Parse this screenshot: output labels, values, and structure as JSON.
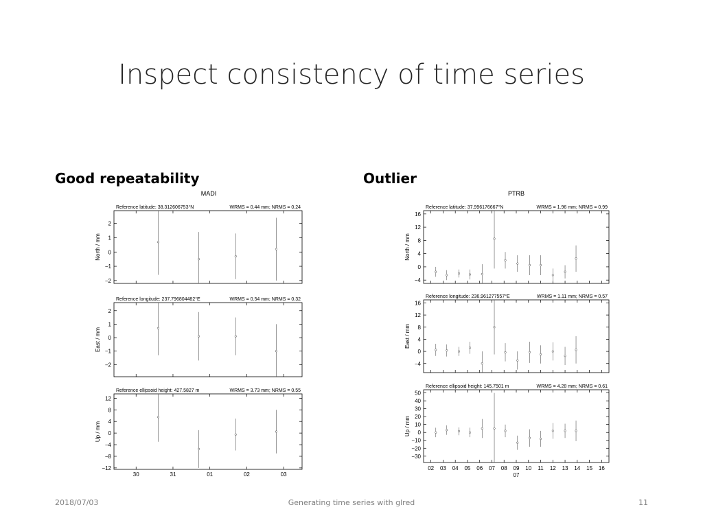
{
  "slide": {
    "title": "Inspect consistency of time series",
    "left_heading": "Good repeatability",
    "right_heading": "Outlier",
    "footer_date": "2018/07/03",
    "footer_center": "Generating time series with glred",
    "page_number": "11"
  },
  "chart_data": [
    {
      "type": "scatter",
      "title": "MADI",
      "x_tick_labels": [
        "30",
        "31",
        "01",
        "02",
        "03"
      ],
      "x_sublabel": "",
      "xlim": [
        29.4,
        34.5
      ],
      "x_ticks": [
        30,
        31,
        32,
        33,
        34
      ],
      "panels": [
        {
          "ylabel": "North / mm",
          "reference": "Reference latitude: 38.312606753°N",
          "stats": "WRMS = 0.44 mm; NRMS = 0.24",
          "ylim": [
            -2.2,
            2.9
          ],
          "y_ticks": [
            -2,
            -1,
            0,
            1,
            2
          ],
          "y_tick_labels": [
            "−2",
            "−1",
            "0",
            "1",
            "2"
          ],
          "points": [
            {
              "x": 30.6,
              "y": 0.7,
              "err": 2.3
            },
            {
              "x": 31.7,
              "y": -0.5,
              "err": 1.9
            },
            {
              "x": 32.7,
              "y": -0.3,
              "err": 1.6
            },
            {
              "x": 33.8,
              "y": 0.2,
              "err": 2.2
            }
          ]
        },
        {
          "ylabel": "East / mm",
          "reference": "Reference longitude: 237.796804482°E",
          "stats": "WRMS = 0.54 mm; NRMS = 0.32",
          "ylim": [
            -2.9,
            2.6
          ],
          "y_ticks": [
            -2,
            -1,
            0,
            1,
            2
          ],
          "y_tick_labels": [
            "−2",
            "−1",
            "0",
            "1",
            "2"
          ],
          "points": [
            {
              "x": 30.6,
              "y": 0.7,
              "err": 2.0
            },
            {
              "x": 31.7,
              "y": 0.1,
              "err": 1.8
            },
            {
              "x": 32.7,
              "y": 0.1,
              "err": 1.4
            },
            {
              "x": 33.8,
              "y": -1.0,
              "err": 2.0
            }
          ]
        },
        {
          "ylabel": "Up / mm",
          "reference": "Reference ellipsoid height: 427.5827 m",
          "stats": "WRMS = 3.73 mm; NRMS = 0.55",
          "ylim": [
            -12.5,
            13.5
          ],
          "y_ticks": [
            -12,
            -8,
            -4,
            0,
            4,
            8,
            12
          ],
          "y_tick_labels": [
            "−12",
            "−8",
            "−4",
            "0",
            "4",
            "8",
            "12"
          ],
          "points": [
            {
              "x": 30.6,
              "y": 5.5,
              "err": 8.5
            },
            {
              "x": 31.7,
              "y": -5.5,
              "err": 6.5
            },
            {
              "x": 32.7,
              "y": -0.5,
              "err": 5.5
            },
            {
              "x": 33.8,
              "y": 0.5,
              "err": 7.5
            }
          ]
        }
      ]
    },
    {
      "type": "scatter",
      "title": "PTRB",
      "x_tick_labels": [
        "02",
        "03",
        "04",
        "05",
        "06",
        "07",
        "08",
        "09",
        "10",
        "11",
        "12",
        "13",
        "14",
        "15",
        "16"
      ],
      "x_sublabel": "07",
      "xlim": [
        1.4,
        16.6
      ],
      "x_ticks": [
        2,
        3,
        4,
        5,
        6,
        7,
        8,
        9,
        10,
        11,
        12,
        13,
        14,
        15,
        16
      ],
      "panels": [
        {
          "ylabel": "North / mm",
          "reference": "Reference latitude: 37.996176667°N",
          "stats": "WRMS = 1.96 mm; NRMS = 0.99",
          "ylim": [
            -5,
            17
          ],
          "y_ticks": [
            -4,
            0,
            4,
            8,
            12,
            16
          ],
          "y_tick_labels": [
            "−4",
            "0",
            "4",
            "8",
            "12",
            "16"
          ],
          "points": [
            {
              "x": 2.4,
              "y": -1.5,
              "err": 1.5
            },
            {
              "x": 3.3,
              "y": -2.5,
              "err": 1.5
            },
            {
              "x": 4.3,
              "y": -2.0,
              "err": 1.2
            },
            {
              "x": 5.2,
              "y": -2.3,
              "err": 1.5
            },
            {
              "x": 6.2,
              "y": -2.2,
              "err": 3.0
            },
            {
              "x": 7.2,
              "y": 8.5,
              "err": 9.0
            },
            {
              "x": 8.1,
              "y": 2.0,
              "err": 2.5
            },
            {
              "x": 9.1,
              "y": 1.0,
              "err": 2.5
            },
            {
              "x": 10.1,
              "y": 0.5,
              "err": 3.0
            },
            {
              "x": 11.0,
              "y": 0.5,
              "err": 3.0
            },
            {
              "x": 12.0,
              "y": -2.5,
              "err": 2.0
            },
            {
              "x": 13.0,
              "y": -1.5,
              "err": 2.0
            },
            {
              "x": 13.9,
              "y": 2.5,
              "err": 4.0
            }
          ]
        },
        {
          "ylabel": "East / mm",
          "reference": "Reference longitude: 236.961277557°E",
          "stats": "WRMS = 1.11 mm; NRMS = 0.57",
          "ylim": [
            -7,
            17
          ],
          "y_ticks": [
            -4,
            0,
            4,
            8,
            12,
            16
          ],
          "y_tick_labels": [
            "−4",
            "0",
            "4",
            "8",
            "12",
            "16"
          ],
          "points": [
            {
              "x": 2.4,
              "y": 0.5,
              "err": 2.0
            },
            {
              "x": 3.3,
              "y": 0.3,
              "err": 2.0
            },
            {
              "x": 4.3,
              "y": 0.0,
              "err": 1.5
            },
            {
              "x": 5.2,
              "y": 1.2,
              "err": 2.0
            },
            {
              "x": 6.2,
              "y": -4.0,
              "err": 4.0
            },
            {
              "x": 7.2,
              "y": 8.0,
              "err": 9.0
            },
            {
              "x": 8.1,
              "y": -0.3,
              "err": 3.0
            },
            {
              "x": 9.1,
              "y": -3.0,
              "err": 3.0
            },
            {
              "x": 10.1,
              "y": -0.3,
              "err": 3.5
            },
            {
              "x": 11.0,
              "y": -1.0,
              "err": 3.0
            },
            {
              "x": 12.0,
              "y": 0.0,
              "err": 3.0
            },
            {
              "x": 13.0,
              "y": -1.5,
              "err": 3.0
            },
            {
              "x": 13.9,
              "y": 0.5,
              "err": 4.5
            }
          ]
        },
        {
          "ylabel": "Up / mm",
          "reference": "Reference ellipsoid height: 145.7501 m",
          "stats": "WRMS = 4.28 mm; NRMS = 0.61",
          "ylim": [
            -38,
            54
          ],
          "y_ticks": [
            -30,
            -20,
            -10,
            0,
            10,
            20,
            30,
            40,
            50
          ],
          "y_tick_labels": [
            "−30",
            "−20",
            "−10",
            "0",
            "10",
            "20",
            "30",
            "40",
            "50"
          ],
          "points": [
            {
              "x": 2.4,
              "y": 0.0,
              "err": 6.0
            },
            {
              "x": 3.3,
              "y": 3.0,
              "err": 6.0
            },
            {
              "x": 4.3,
              "y": 1.5,
              "err": 5.0
            },
            {
              "x": 5.2,
              "y": 0.0,
              "err": 6.0
            },
            {
              "x": 6.2,
              "y": 5.0,
              "err": 12.0
            },
            {
              "x": 7.2,
              "y": 5.0,
              "err": 45.0
            },
            {
              "x": 8.1,
              "y": 2.0,
              "err": 8.0
            },
            {
              "x": 9.1,
              "y": -13.0,
              "err": 9.0
            },
            {
              "x": 10.1,
              "y": -7.0,
              "err": 11.0
            },
            {
              "x": 11.0,
              "y": -8.0,
              "err": 10.0
            },
            {
              "x": 12.0,
              "y": 2.0,
              "err": 10.0
            },
            {
              "x": 13.0,
              "y": 2.0,
              "err": 9.0
            },
            {
              "x": 13.9,
              "y": 2.0,
              "err": 13.0
            }
          ]
        }
      ]
    }
  ]
}
